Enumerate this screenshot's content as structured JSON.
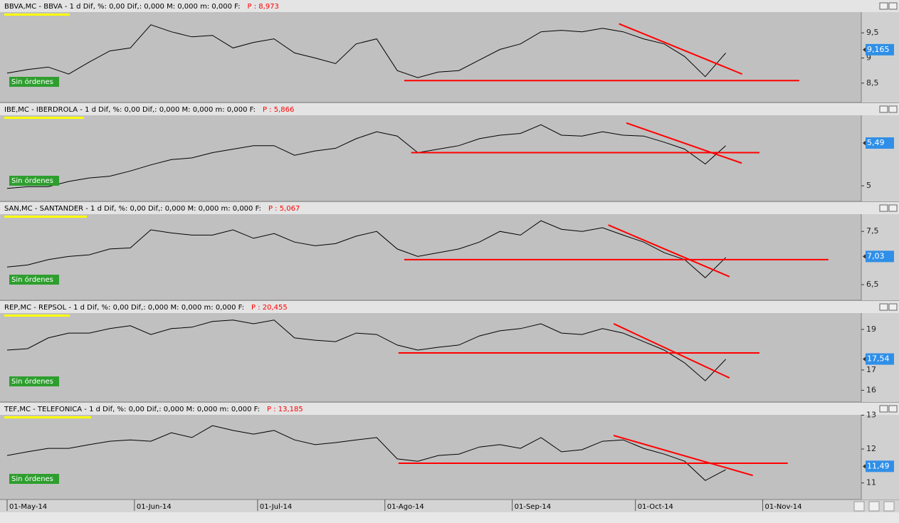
{
  "chart_data": [
    {
      "type": "line",
      "title": "BBVA,MC - BBVA - 1 d Dif, %: 0,00 Dif,: 0,000 M: 0,000 m: 0,000 F:",
      "price_label": "P : 8,973",
      "status": "Sin órdenes",
      "x": [
        0,
        5,
        10,
        15,
        20,
        25,
        30,
        35,
        40,
        45,
        50,
        55,
        60,
        65,
        70,
        75,
        80,
        85,
        90,
        95,
        100,
        105,
        110,
        115,
        120,
        125,
        130,
        135,
        140,
        145,
        150,
        155,
        160,
        165,
        170,
        175
      ],
      "series": [
        {
          "color": "#000000",
          "values": [
            8.7,
            8.77,
            8.82,
            8.68,
            8.92,
            9.14,
            9.2,
            9.66,
            9.52,
            9.42,
            9.45,
            9.2,
            9.31,
            9.38,
            9.1,
            9.0,
            8.89,
            9.28,
            9.38,
            8.75,
            8.61,
            8.72,
            8.75,
            8.96,
            9.17,
            9.28,
            9.52,
            9.55,
            9.52,
            9.59,
            9.52,
            9.38,
            9.28,
            9.03,
            8.63,
            9.1
          ]
        }
      ],
      "xlim": [
        0,
        208
      ],
      "ylim": [
        8.13,
        9.87
      ],
      "yticks": [
        {
          "value": 8.5,
          "label": "8,5"
        },
        9,
        {
          "value": 9.5,
          "label": "9,5"
        }
      ],
      "current": {
        "value": 9.165,
        "label": "9,165"
      },
      "trendlines": [
        {
          "color": "#ff0000",
          "x": [
            96.7,
            192.9
          ],
          "y": [
            8.55,
            8.55
          ]
        },
        {
          "color": "#ff0000",
          "x": [
            149,
            179
          ],
          "y": [
            9.68,
            8.68
          ]
        }
      ]
    },
    {
      "type": "line",
      "title": "IBE,MC - IBERDROLA - 1 d Dif, %: 0,00 Dif,: 0,000 M: 0,000 m: 0,000 F:",
      "price_label": "P : 5,866",
      "status": "Sin órdenes",
      "x": [
        0,
        5,
        10,
        15,
        20,
        25,
        30,
        35,
        40,
        45,
        50,
        55,
        60,
        65,
        70,
        75,
        80,
        85,
        90,
        95,
        100,
        105,
        110,
        115,
        120,
        125,
        130,
        135,
        140,
        145,
        150,
        155,
        160,
        165,
        170,
        175
      ],
      "series": [
        {
          "color": "#000000",
          "values": [
            4.97,
            4.99,
            4.99,
            5.05,
            5.09,
            5.11,
            5.17,
            5.24,
            5.3,
            5.32,
            5.38,
            5.42,
            5.46,
            5.46,
            5.35,
            5.4,
            5.43,
            5.54,
            5.62,
            5.57,
            5.38,
            5.42,
            5.46,
            5.54,
            5.58,
            5.6,
            5.7,
            5.58,
            5.57,
            5.62,
            5.58,
            5.57,
            5.5,
            5.42,
            5.25,
            5.46
          ]
        }
      ],
      "xlim": [
        0,
        208
      ],
      "ylim": [
        4.83,
        5.8
      ],
      "yticks": [
        5
      ],
      "current": {
        "value": 5.49,
        "label": "5,49"
      },
      "trendlines": [
        {
          "color": "#ff0000",
          "x": [
            98.4,
            183.2
          ],
          "y": [
            5.38,
            5.38
          ]
        },
        {
          "color": "#ff0000",
          "x": [
            150.8,
            178.9
          ],
          "y": [
            5.72,
            5.26
          ]
        }
      ]
    },
    {
      "type": "line",
      "title": "SAN,MC - SANTANDER - 1 d Dif, %: 0,00 Dif,: 0,000 M: 0,000 m: 0,000 F:",
      "price_label": "P : 5,067",
      "status": "Sin órdenes",
      "x": [
        0,
        5,
        10,
        15,
        20,
        25,
        30,
        35,
        40,
        45,
        50,
        55,
        60,
        65,
        70,
        75,
        80,
        85,
        90,
        95,
        100,
        105,
        110,
        115,
        120,
        125,
        130,
        135,
        140,
        145,
        150,
        155,
        160,
        165,
        170,
        175
      ],
      "series": [
        {
          "color": "#000000",
          "values": [
            6.83,
            6.87,
            6.97,
            7.03,
            7.06,
            7.17,
            7.19,
            7.53,
            7.47,
            7.43,
            7.43,
            7.53,
            7.37,
            7.46,
            7.3,
            7.23,
            7.27,
            7.41,
            7.5,
            7.17,
            7.03,
            7.1,
            7.17,
            7.3,
            7.5,
            7.43,
            7.7,
            7.54,
            7.5,
            7.57,
            7.43,
            7.3,
            7.1,
            6.97,
            6.63,
            7.01
          ]
        }
      ],
      "xlim": [
        0,
        208
      ],
      "ylim": [
        6.22,
        7.81
      ],
      "yticks": [
        {
          "value": 6.5,
          "label": "6,5"
        },
        {
          "value": 7.5,
          "label": "7,5"
        }
      ],
      "current": {
        "value": 7.03,
        "label": "7,03"
      },
      "trendlines": [
        {
          "color": "#ff0000",
          "x": [
            96.7,
            200
          ],
          "y": [
            6.97,
            6.97
          ]
        },
        {
          "color": "#ff0000",
          "x": [
            146.4,
            175.9
          ],
          "y": [
            7.62,
            6.65
          ]
        }
      ]
    },
    {
      "type": "line",
      "title": "REP,MC - REPSOL - 1 d Dif, %: 0,00 Dif,: 0,000 M: 0,000 m: 0,000 F:",
      "price_label": "P : 20,455",
      "status": "Sin órdenes",
      "x": [
        0,
        5,
        10,
        15,
        20,
        25,
        30,
        35,
        40,
        45,
        50,
        55,
        60,
        65,
        70,
        75,
        80,
        85,
        90,
        95,
        100,
        105,
        110,
        115,
        120,
        125,
        130,
        135,
        140,
        145,
        150,
        155,
        160,
        165,
        170,
        175
      ],
      "series": [
        {
          "color": "#000000",
          "values": [
            17.98,
            18.05,
            18.58,
            18.82,
            18.82,
            19.04,
            19.18,
            18.75,
            19.04,
            19.11,
            19.39,
            19.46,
            19.28,
            19.46,
            18.58,
            18.47,
            18.4,
            18.82,
            18.75,
            18.23,
            17.98,
            18.12,
            18.23,
            18.68,
            18.93,
            19.04,
            19.28,
            18.82,
            18.75,
            19.04,
            18.82,
            18.4,
            17.98,
            17.35,
            16.47,
            17.53
          ]
        }
      ],
      "xlim": [
        0,
        208
      ],
      "ylim": [
        15.42,
        19.77
      ],
      "yticks": [
        16,
        17,
        19
      ],
      "current": {
        "value": 17.54,
        "label": "17,54"
      },
      "trendlines": [
        {
          "color": "#ff0000",
          "x": [
            95.3,
            183.2
          ],
          "y": [
            17.84,
            17.84
          ]
        },
        {
          "color": "#ff0000",
          "x": [
            147.7,
            175.9
          ],
          "y": [
            19.28,
            16.61
          ]
        }
      ]
    },
    {
      "type": "line",
      "title": "TEF,MC - TELEFONICA - 1 d Dif, %: 0,00 Dif,: 0,000 M: 0,000 m: 0,000 F:",
      "price_label": "P : 13,185",
      "status": "Sin órdenes",
      "x": [
        0,
        5,
        10,
        15,
        20,
        25,
        30,
        35,
        40,
        45,
        50,
        55,
        60,
        65,
        70,
        75,
        80,
        85,
        90,
        95,
        100,
        105,
        110,
        115,
        120,
        125,
        130,
        135,
        140,
        145,
        150,
        155,
        160,
        165,
        170,
        175
      ],
      "series": [
        {
          "color": "#000000",
          "values": [
            11.81,
            11.92,
            12.02,
            12.02,
            12.13,
            12.23,
            12.27,
            12.23,
            12.48,
            12.34,
            12.69,
            12.55,
            12.44,
            12.55,
            12.27,
            12.13,
            12.19,
            12.27,
            12.34,
            11.71,
            11.64,
            11.81,
            11.85,
            12.06,
            12.13,
            12.02,
            12.34,
            11.92,
            11.98,
            12.23,
            12.27,
            12.02,
            11.85,
            11.64,
            11.07,
            11.39
          ]
        }
      ],
      "xlim": [
        0,
        208
      ],
      "ylim": [
        10.51,
        13.03
      ],
      "yticks": [
        11,
        12,
        13
      ],
      "xticks": [
        {
          "value": 0,
          "label": "01-May-14"
        },
        {
          "value": 31,
          "label": "01-Jun-14"
        },
        {
          "value": 61,
          "label": "01-Jul-14"
        },
        {
          "value": 92,
          "label": "01-Ago-14"
        },
        {
          "value": 123,
          "label": "01-Sep-14"
        },
        {
          "value": 153,
          "label": "01-Oct-14"
        },
        {
          "value": 184,
          "label": "01-Nov-14"
        }
      ],
      "current": {
        "value": 11.49,
        "label": "11,49"
      },
      "trendlines": [
        {
          "color": "#ff0000",
          "x": [
            95.3,
            190.1
          ],
          "y": [
            11.58,
            11.58
          ]
        },
        {
          "color": "#ff0000",
          "x": [
            147.7,
            181.6
          ],
          "y": [
            12.4,
            11.22
          ]
        }
      ]
    }
  ]
}
